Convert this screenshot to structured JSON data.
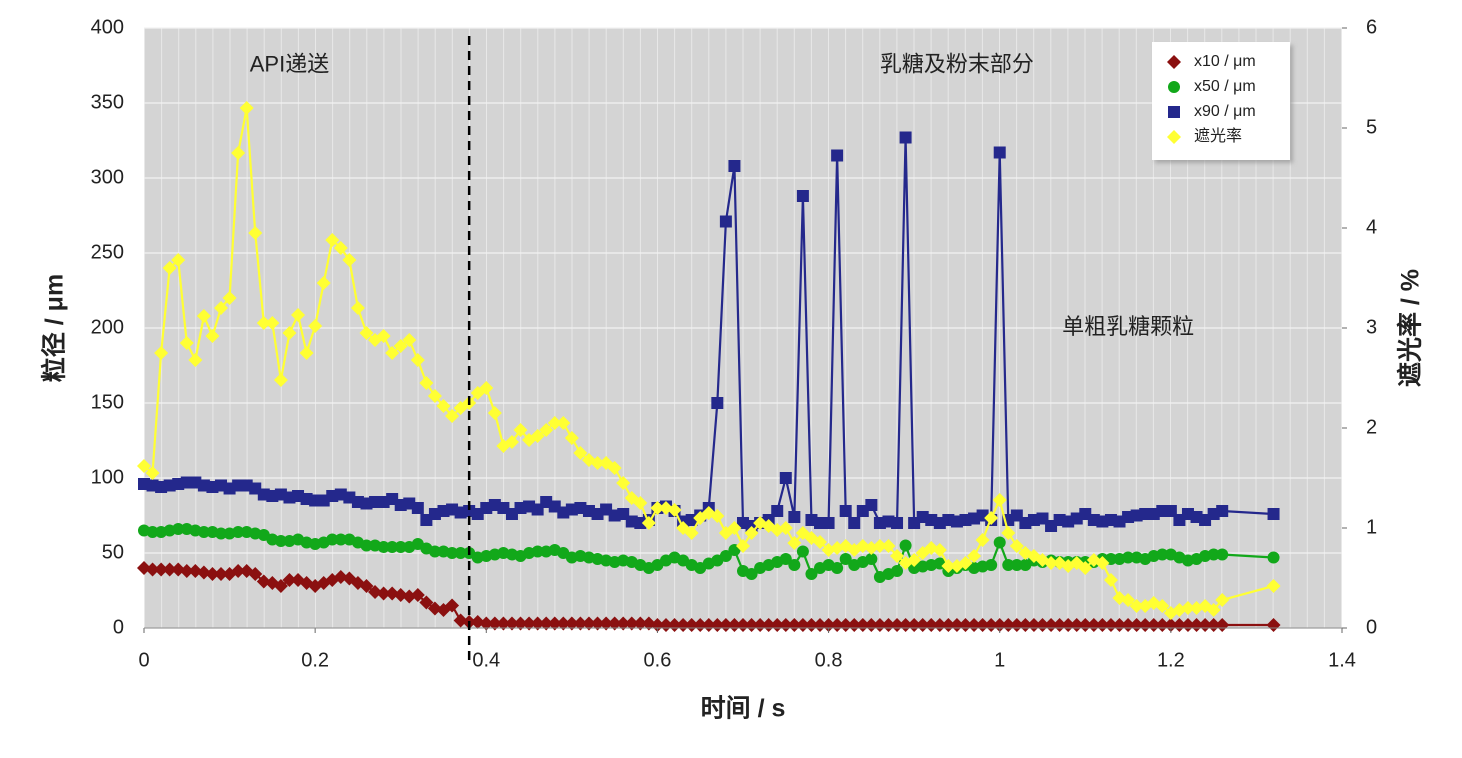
{
  "chart_data": {
    "type": "line",
    "x_label": "时间 / s",
    "y_label": "粒径 / μm",
    "y2_label": "遮光率 / %",
    "annotations": [
      {
        "text": "API递送",
        "x": 0.17,
        "y": 375
      },
      {
        "text": "乳糖及粉末部分",
        "x": 0.95,
        "y": 375
      },
      {
        "text": "单粗乳糖颗粒",
        "x": 1.15,
        "y": 200
      }
    ],
    "reference_line": {
      "x": 0.38
    },
    "xlim": [
      0,
      1.4
    ],
    "xticks": [
      0,
      0.2,
      0.4,
      0.6,
      0.8,
      1,
      1.2,
      1.4
    ],
    "ylim": [
      0,
      400
    ],
    "yticks": [
      0,
      50,
      100,
      150,
      200,
      250,
      300,
      350,
      400
    ],
    "y2lim": [
      0,
      6
    ],
    "y2ticks": [
      0,
      1,
      2,
      3,
      4,
      5,
      6
    ],
    "grid": true,
    "legend": "upper right",
    "x": [
      0,
      0.01,
      0.02,
      0.03,
      0.04,
      0.05,
      0.06,
      0.07,
      0.08,
      0.09,
      0.1,
      0.11,
      0.12,
      0.13,
      0.14,
      0.15,
      0.16,
      0.17,
      0.18,
      0.19,
      0.2,
      0.21,
      0.22,
      0.23,
      0.24,
      0.25,
      0.26,
      0.27,
      0.28,
      0.29,
      0.3,
      0.31,
      0.32,
      0.33,
      0.34,
      0.35,
      0.36,
      0.37,
      0.38,
      0.39,
      0.4,
      0.41,
      0.42,
      0.43,
      0.44,
      0.45,
      0.46,
      0.47,
      0.48,
      0.49,
      0.5,
      0.51,
      0.52,
      0.53,
      0.54,
      0.55,
      0.56,
      0.57,
      0.58,
      0.59,
      0.6,
      0.61,
      0.62,
      0.63,
      0.64,
      0.65,
      0.66,
      0.67,
      0.68,
      0.69,
      0.7,
      0.71,
      0.72,
      0.73,
      0.74,
      0.75,
      0.76,
      0.77,
      0.78,
      0.79,
      0.8,
      0.81,
      0.82,
      0.83,
      0.84,
      0.85,
      0.86,
      0.87,
      0.88,
      0.89,
      0.9,
      0.91,
      0.92,
      0.93,
      0.94,
      0.95,
      0.96,
      0.97,
      0.98,
      0.99,
      1,
      1.01,
      1.02,
      1.03,
      1.04,
      1.05,
      1.06,
      1.07,
      1.08,
      1.09,
      1.1,
      1.11,
      1.12,
      1.13,
      1.14,
      1.15,
      1.16,
      1.17,
      1.18,
      1.19,
      1.2,
      1.21,
      1.22,
      1.23,
      1.24,
      1.25,
      1.26,
      1.32
    ],
    "series": [
      {
        "name": "x10 / μm",
        "color": "#8b1010",
        "marker": "diamond",
        "values": [
          40,
          39,
          39,
          39,
          39,
          38,
          38,
          37,
          36,
          36,
          36,
          38,
          38,
          36,
          31,
          30,
          28,
          32,
          32,
          30,
          28,
          30,
          32,
          34,
          33,
          30,
          28,
          24,
          23,
          23,
          22,
          21,
          22,
          17,
          13,
          12,
          15,
          5,
          4,
          4,
          3,
          3,
          3,
          3,
          3,
          3,
          3,
          3,
          3,
          3,
          3,
          3,
          3,
          3,
          3,
          3,
          3,
          3,
          3,
          3,
          2,
          2,
          2,
          2,
          2,
          2,
          2,
          2,
          2,
          2,
          2,
          2,
          2,
          2,
          2,
          2,
          2,
          2,
          2,
          2,
          2,
          2,
          2,
          2,
          2,
          2,
          2,
          2,
          2,
          2,
          2,
          2,
          2,
          2,
          2,
          2,
          2,
          2,
          2,
          2,
          2,
          2,
          2,
          2,
          2,
          2,
          2,
          2,
          2,
          2,
          2,
          2,
          2,
          2,
          2,
          2,
          2,
          2,
          2,
          2,
          2,
          2,
          2,
          2,
          2,
          2,
          2,
          2
        ]
      },
      {
        "name": "x50 / μm",
        "color": "#12a81a",
        "marker": "circle",
        "values": [
          65,
          64,
          64,
          65,
          66,
          66,
          65,
          64,
          64,
          63,
          63,
          64,
          64,
          63,
          62,
          59,
          58,
          58,
          59,
          57,
          56,
          57,
          59,
          59,
          59,
          57,
          55,
          55,
          54,
          54,
          54,
          54,
          56,
          53,
          51,
          51,
          50,
          50,
          50,
          47,
          48,
          49,
          50,
          49,
          48,
          50,
          51,
          51,
          52,
          50,
          47,
          48,
          47,
          46,
          45,
          44,
          45,
          44,
          42,
          40,
          42,
          45,
          47,
          45,
          42,
          40,
          43,
          45,
          48,
          52,
          38,
          36,
          40,
          42,
          44,
          46,
          42,
          51,
          36,
          40,
          42,
          40,
          46,
          42,
          44,
          46,
          34,
          36,
          38,
          55,
          40,
          41,
          42,
          43,
          38,
          40,
          42,
          40,
          41,
          42,
          57,
          42,
          42,
          42,
          45,
          44,
          45,
          44,
          44,
          44,
          44,
          44,
          46,
          46,
          46,
          47,
          47,
          46,
          48,
          49,
          49,
          47,
          45,
          46,
          48,
          49,
          49,
          47
        ]
      },
      {
        "name": "x90 / μm",
        "color": "#24288c",
        "marker": "square",
        "values": [
          96,
          95,
          94,
          95,
          96,
          97,
          97,
          95,
          94,
          95,
          93,
          95,
          95,
          93,
          89,
          88,
          89,
          87,
          88,
          86,
          85,
          85,
          88,
          89,
          87,
          84,
          83,
          84,
          84,
          86,
          82,
          83,
          80,
          72,
          76,
          78,
          79,
          77,
          78,
          76,
          80,
          82,
          80,
          76,
          80,
          81,
          79,
          84,
          81,
          77,
          79,
          80,
          78,
          76,
          79,
          75,
          76,
          71,
          70,
          72,
          80,
          81,
          78,
          71,
          72,
          75,
          80,
          150,
          271,
          308,
          70,
          68,
          70,
          72,
          78,
          100,
          74,
          288,
          72,
          70,
          70,
          315,
          78,
          70,
          78,
          82,
          70,
          71,
          70,
          327,
          70,
          74,
          72,
          70,
          72,
          71,
          72,
          73,
          75,
          72,
          317,
          72,
          75,
          70,
          72,
          73,
          68,
          72,
          71,
          73,
          76,
          72,
          71,
          72,
          71,
          74,
          75,
          76,
          76,
          78,
          78,
          72,
          76,
          74,
          72,
          76,
          78,
          76
        ]
      },
      {
        "name": "遮光率",
        "color": "#ffff33",
        "marker": "diamond",
        "axis": "y2",
        "values": [
          1.62,
          1.55,
          2.75,
          3.6,
          3.68,
          2.85,
          2.68,
          3.12,
          2.92,
          3.2,
          3.3,
          4.75,
          5.2,
          3.95,
          3.05,
          3.05,
          2.48,
          2.95,
          3.13,
          2.75,
          3.02,
          3.45,
          3.88,
          3.8,
          3.68,
          3.2,
          2.95,
          2.88,
          2.92,
          2.75,
          2.82,
          2.88,
          2.68,
          2.45,
          2.32,
          2.22,
          2.12,
          2.2,
          2.25,
          2.35,
          2.4,
          2.15,
          1.82,
          1.86,
          1.98,
          1.88,
          1.92,
          1.98,
          2.05,
          2.05,
          1.9,
          1.75,
          1.68,
          1.65,
          1.65,
          1.6,
          1.45,
          1.3,
          1.25,
          1.05,
          1.2,
          1.2,
          1.18,
          1.0,
          0.95,
          1.1,
          1.15,
          1.12,
          0.95,
          1.0,
          0.82,
          0.95,
          1.05,
          1.02,
          0.98,
          1.0,
          0.85,
          0.95,
          0.9,
          0.86,
          0.78,
          0.8,
          0.82,
          0.78,
          0.82,
          0.8,
          0.82,
          0.82,
          0.72,
          0.65,
          0.68,
          0.75,
          0.8,
          0.78,
          0.62,
          0.62,
          0.65,
          0.72,
          0.88,
          1.1,
          1.28,
          0.95,
          0.82,
          0.75,
          0.72,
          0.68,
          0.65,
          0.65,
          0.62,
          0.65,
          0.6,
          0.68,
          0.65,
          0.48,
          0.3,
          0.28,
          0.22,
          0.22,
          0.25,
          0.22,
          0.15,
          0.18,
          0.2,
          0.2,
          0.22,
          0.18,
          0.28,
          0.42
        ]
      }
    ]
  }
}
